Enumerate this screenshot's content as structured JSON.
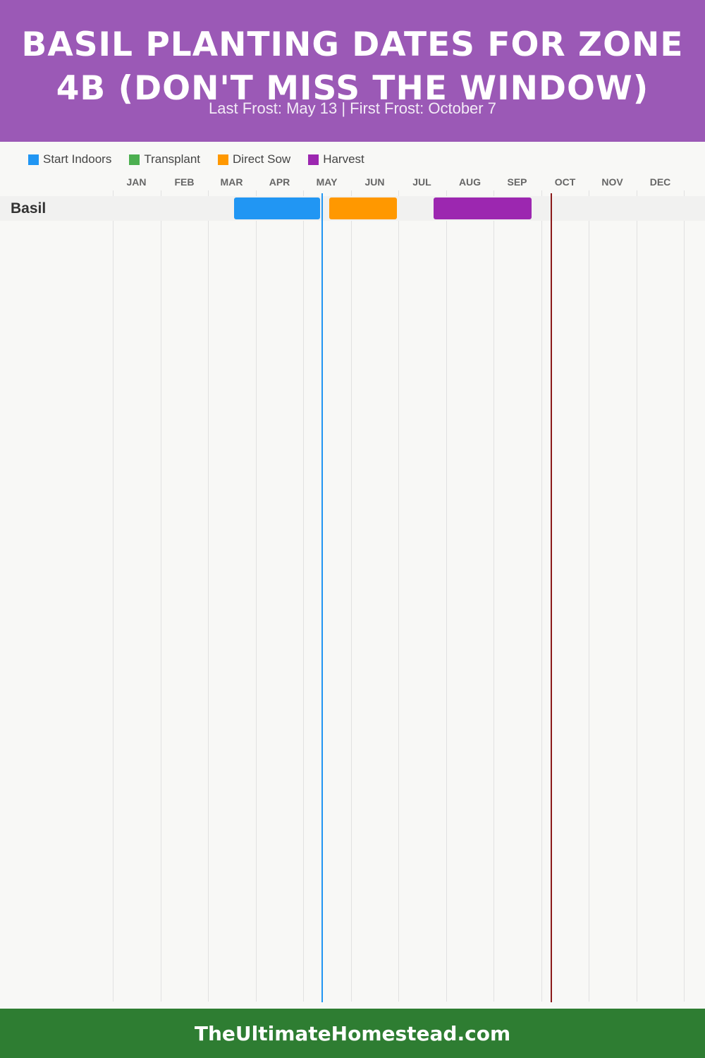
{
  "header": {
    "title": "BASIL PLANTING DATES FOR ZONE 4B (DON'T MISS THE WINDOW)",
    "subtitle": "Last Frost: May 13 | First Frost: October 7"
  },
  "legend": [
    {
      "label": "Start Indoors",
      "color": "#2196f3"
    },
    {
      "label": "Transplant",
      "color": "#4caf50"
    },
    {
      "label": "Direct Sow",
      "color": "#ff9800"
    },
    {
      "label": "Harvest",
      "color": "#9c27b0"
    }
  ],
  "chart_data": {
    "type": "gantt",
    "title": "BASIL PLANTING DATES FOR ZONE 4B (DON'T MISS THE WINDOW)",
    "subtitle": "Last Frost: May 13 | First Frost: October 7",
    "months": [
      "JAN",
      "FEB",
      "MAR",
      "APR",
      "MAY",
      "JUN",
      "JUL",
      "AUG",
      "SEP",
      "OCT",
      "NOV",
      "DEC"
    ],
    "x_range": [
      0,
      12
    ],
    "grid": true,
    "legend_placement": "top-left",
    "rows": [
      {
        "label": "Basil",
        "bars": [
          {
            "series": "Start Indoors",
            "start": "Mar 18",
            "end": "May 12",
            "color": "#2196f3"
          },
          {
            "series": "Direct Sow",
            "start": "May 18",
            "end": "Jun 30",
            "color": "#ff9800"
          },
          {
            "series": "Harvest",
            "start": "Jul 24",
            "end": "Sep 25",
            "color": "#9c27b0"
          }
        ]
      }
    ],
    "markers": [
      {
        "label": "Last Frost",
        "date": "May 13",
        "color": "#2196f3"
      },
      {
        "label": "First Frost",
        "date": "Oct 7",
        "color": "#8b1a1a"
      }
    ]
  },
  "footer": {
    "text": "TheUltimateHomestead.com"
  }
}
